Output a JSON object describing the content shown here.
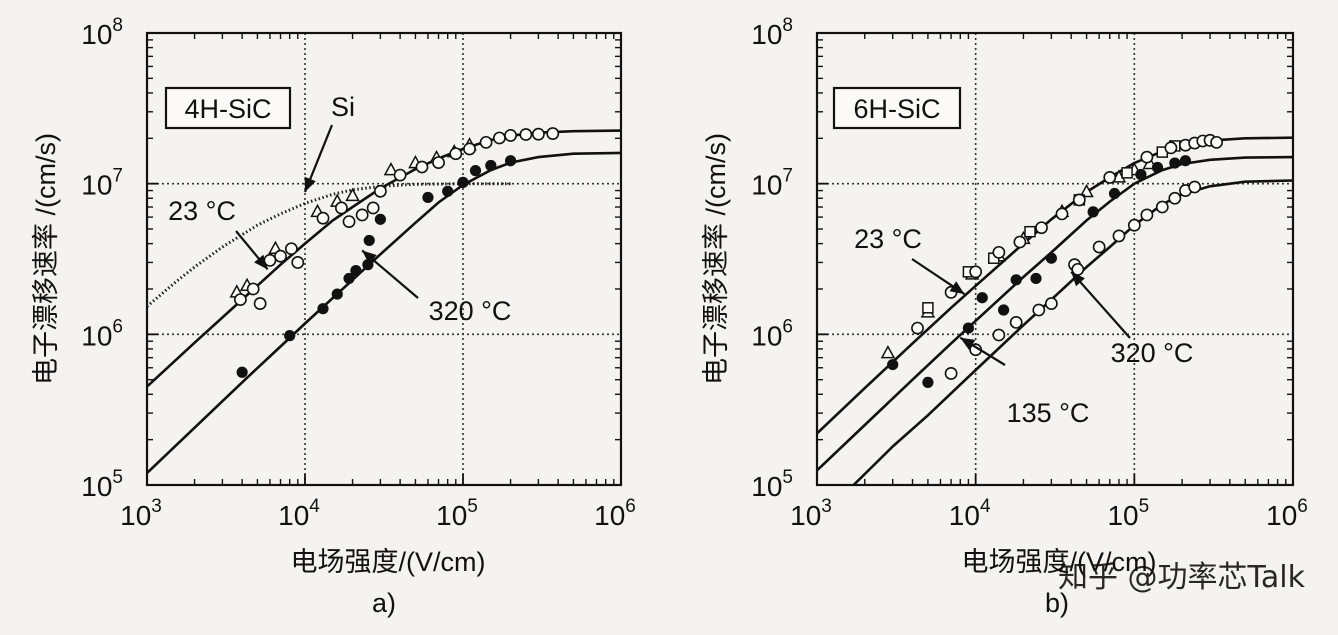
{
  "colors": {
    "ink": "#111111",
    "grid": "#333333",
    "background": "#f4f3ef",
    "watermark": "#ffffff"
  },
  "watermark": "知乎 @功率芯Talk",
  "chart_data": [
    {
      "type": "scatter",
      "panel_label": "a)",
      "box_label": "4H-SiC",
      "xlabel": "电场强度/(V/cm)",
      "ylabel": "电子漂移速率 /(cm/s)",
      "x_scale": "log",
      "y_scale": "log",
      "xlim": [
        1000,
        1000000
      ],
      "ylim": [
        100000,
        100000000
      ],
      "x_ticks": [
        {
          "base": "10",
          "exp": "3"
        },
        {
          "base": "10",
          "exp": "4"
        },
        {
          "base": "10",
          "exp": "5"
        },
        {
          "base": "10",
          "exp": "6"
        }
      ],
      "y_ticks": [
        {
          "base": "10",
          "exp": "5"
        },
        {
          "base": "10",
          "exp": "6"
        },
        {
          "base": "10",
          "exp": "7"
        },
        {
          "base": "10",
          "exp": "8"
        }
      ],
      "grid": "dotted",
      "annotations": [
        {
          "text": "Si",
          "to": [
            10000,
            8800000
          ]
        },
        {
          "text": "23 °C",
          "to": [
            5800,
            2700000
          ]
        },
        {
          "text": "320 °C",
          "to": [
            23000,
            3600000
          ]
        }
      ],
      "series": [
        {
          "name": "Si",
          "style": "dotted-curve",
          "points": [
            [
              1000,
              1530000
            ],
            [
              1500,
              2200000
            ],
            [
              2000,
              2800000
            ],
            [
              3000,
              3800000
            ],
            [
              5000,
              5300000
            ],
            [
              7000,
              6300000
            ],
            [
              10000,
              7400000
            ],
            [
              15000,
              8500000
            ],
            [
              20000,
              9100000
            ],
            [
              30000,
              9600000
            ],
            [
              50000,
              9900000
            ],
            [
              100000,
              10000000
            ],
            [
              200000,
              10000000
            ]
          ]
        },
        {
          "name": "23 °C",
          "style": "solid-curve",
          "points": [
            [
              1000,
              450000
            ],
            [
              2000,
              880000
            ],
            [
              4000,
              1700000
            ],
            [
              7000,
              2900000
            ],
            [
              10000,
              4000000
            ],
            [
              15000,
              5700000
            ],
            [
              20000,
              7000000
            ],
            [
              30000,
              9300000
            ],
            [
              50000,
              12500000
            ],
            [
              70000,
              14700000
            ],
            [
              100000,
              17000000
            ],
            [
              150000,
              19500000
            ],
            [
              200000,
              20800000
            ],
            [
              300000,
              21800000
            ],
            [
              500000,
              22300000
            ],
            [
              1000000,
              22500000
            ]
          ]
        },
        {
          "name": "320 °C",
          "style": "solid-curve",
          "points": [
            [
              1000,
              120000
            ],
            [
              2000,
              240000
            ],
            [
              4000,
              480000
            ],
            [
              7000,
              830000
            ],
            [
              10000,
              1180000
            ],
            [
              20000,
              2300000
            ],
            [
              30000,
              3400000
            ],
            [
              50000,
              5500000
            ],
            [
              70000,
              7500000
            ],
            [
              100000,
              9800000
            ],
            [
              150000,
              12300000
            ],
            [
              200000,
              13800000
            ],
            [
              300000,
              15000000
            ],
            [
              500000,
              15800000
            ],
            [
              1000000,
              16000000
            ]
          ]
        },
        {
          "name": "triangles",
          "marker": "triangle-open",
          "points": [
            [
              3700,
              1900000
            ],
            [
              4300,
              2100000
            ],
            [
              6500,
              3700000
            ],
            [
              12000,
              6500000
            ],
            [
              16000,
              7600000
            ],
            [
              20000,
              8300000
            ],
            [
              35000,
              12300000
            ],
            [
              50000,
              13700000
            ],
            [
              68000,
              14800000
            ],
            [
              88000,
              16200000
            ],
            [
              110000,
              18000000
            ]
          ]
        },
        {
          "name": "open circles",
          "marker": "circle-open",
          "points": [
            [
              3900,
              1700000
            ],
            [
              4700,
              2000000
            ],
            [
              5200,
              1600000
            ],
            [
              6000,
              3100000
            ],
            [
              7000,
              3300000
            ],
            [
              8200,
              3700000
            ],
            [
              9000,
              3000000
            ],
            [
              13000,
              5900000
            ],
            [
              17000,
              6900000
            ],
            [
              19000,
              5600000
            ],
            [
              23000,
              6200000
            ],
            [
              27000,
              6900000
            ],
            [
              30000,
              8900000
            ],
            [
              40000,
              11400000
            ],
            [
              55000,
              12900000
            ],
            [
              70000,
              13800000
            ],
            [
              90000,
              15800000
            ],
            [
              110000,
              17000000
            ],
            [
              140000,
              18800000
            ],
            [
              170000,
              20100000
            ],
            [
              200000,
              20900000
            ],
            [
              250000,
              21200000
            ],
            [
              300000,
              21300000
            ],
            [
              370000,
              21500000
            ]
          ]
        },
        {
          "name": "filled circles",
          "marker": "circle-filled",
          "points": [
            [
              4000,
              560000
            ],
            [
              8000,
              980000
            ],
            [
              13000,
              1480000
            ],
            [
              16000,
              1850000
            ],
            [
              19000,
              2350000
            ],
            [
              21000,
              2650000
            ],
            [
              25000,
              2900000
            ],
            [
              25500,
              4200000
            ],
            [
              30000,
              5800000
            ],
            [
              60000,
              8100000
            ],
            [
              80000,
              8900000
            ],
            [
              100000,
              10200000
            ],
            [
              120000,
              12200000
            ],
            [
              150000,
              13200000
            ],
            [
              200000,
              14200000
            ]
          ]
        }
      ]
    },
    {
      "type": "scatter",
      "panel_label": "b)",
      "box_label": "6H-SiC",
      "xlabel": "电场强度/(V/cm)",
      "ylabel": "电子漂移速率 /(cm/s)",
      "x_scale": "log",
      "y_scale": "log",
      "xlim": [
        1000,
        1000000
      ],
      "ylim": [
        100000,
        100000000
      ],
      "x_ticks": [
        {
          "base": "10",
          "exp": "3"
        },
        {
          "base": "10",
          "exp": "4"
        },
        {
          "base": "10",
          "exp": "5"
        },
        {
          "base": "10",
          "exp": "6"
        }
      ],
      "y_ticks": [
        {
          "base": "10",
          "exp": "5"
        },
        {
          "base": "10",
          "exp": "6"
        },
        {
          "base": "10",
          "exp": "7"
        },
        {
          "base": "10",
          "exp": "8"
        }
      ],
      "grid": "dotted",
      "annotations": [
        {
          "text": "23 °C",
          "to": [
            8500,
            1850000
          ]
        },
        {
          "text": "135 °C",
          "to": [
            8000,
            950000
          ]
        },
        {
          "text": "320 °C",
          "to": [
            40000,
            2600000
          ]
        }
      ],
      "series": [
        {
          "name": "23 °C",
          "style": "solid-curve",
          "points": [
            [
              1000,
              220000
            ],
            [
              2000,
              440000
            ],
            [
              4000,
              870000
            ],
            [
              7000,
              1500000
            ],
            [
              10000,
              2100000
            ],
            [
              20000,
              4000000
            ],
            [
              30000,
              5800000
            ],
            [
              50000,
              8800000
            ],
            [
              70000,
              11000000
            ],
            [
              100000,
              13700000
            ],
            [
              150000,
              16400000
            ],
            [
              200000,
              18000000
            ],
            [
              300000,
              19300000
            ],
            [
              500000,
              20000000
            ],
            [
              1000000,
              20200000
            ]
          ]
        },
        {
          "name": "135 °C",
          "style": "solid-curve",
          "points": [
            [
              1000,
              125000
            ],
            [
              2000,
              250000
            ],
            [
              4000,
              500000
            ],
            [
              7000,
              870000
            ],
            [
              10000,
              1230000
            ],
            [
              20000,
              2400000
            ],
            [
              30000,
              3500000
            ],
            [
              50000,
              5700000
            ],
            [
              70000,
              7600000
            ],
            [
              100000,
              10000000
            ],
            [
              150000,
              12300000
            ],
            [
              200000,
              13500000
            ],
            [
              300000,
              14400000
            ],
            [
              500000,
              14900000
            ],
            [
              1000000,
              15000000
            ]
          ]
        },
        {
          "name": "320 °C",
          "style": "solid-curve",
          "points": [
            [
              1700,
              100000
            ],
            [
              3000,
              180000
            ],
            [
              5000,
              290000
            ],
            [
              10000,
              580000
            ],
            [
              20000,
              1150000
            ],
            [
              30000,
              1700000
            ],
            [
              50000,
              2800000
            ],
            [
              70000,
              3800000
            ],
            [
              100000,
              5300000
            ],
            [
              150000,
              7300000
            ],
            [
              200000,
              8500000
            ],
            [
              300000,
              9600000
            ],
            [
              500000,
              10300000
            ],
            [
              1000000,
              10500000
            ]
          ]
        },
        {
          "name": "triangles",
          "marker": "triangle-open",
          "points": [
            [
              2800,
              750000
            ],
            [
              5000,
              1400000
            ],
            [
              9500,
              2500000
            ],
            [
              14000,
              3300000
            ],
            [
              20000,
              4300000
            ],
            [
              35000,
              6500000
            ],
            [
              50000,
              8800000
            ],
            [
              80000,
              11000000
            ],
            [
              100000,
              12300000
            ],
            [
              125000,
              13500000
            ]
          ]
        },
        {
          "name": "squares",
          "marker": "square-open",
          "points": [
            [
              5000,
              1500000
            ],
            [
              9000,
              2600000
            ],
            [
              13000,
              3200000
            ],
            [
              22000,
              4800000
            ],
            [
              45000,
              7800000
            ],
            [
              90000,
              11800000
            ],
            [
              150000,
              16200000
            ],
            [
              180000,
              17800000
            ]
          ]
        },
        {
          "name": "open circles",
          "marker": "circle-open",
          "points": [
            [
              4300,
              1100000
            ],
            [
              7000,
              1900000
            ],
            [
              10000,
              2600000
            ],
            [
              14000,
              3500000
            ],
            [
              19000,
              4100000
            ],
            [
              26000,
              5100000
            ],
            [
              35000,
              6300000
            ],
            [
              45000,
              7800000
            ],
            [
              70000,
              11000000
            ],
            [
              120000,
              15000000
            ],
            [
              170000,
              17300000
            ],
            [
              210000,
              18000000
            ],
            [
              240000,
              18600000
            ],
            [
              270000,
              19200000
            ],
            [
              300000,
              19400000
            ],
            [
              330000,
              18800000
            ]
          ]
        },
        {
          "name": "filled circles",
          "marker": "circle-filled",
          "points": [
            [
              3000,
              630000
            ],
            [
              5000,
              480000
            ],
            [
              9000,
              1100000
            ],
            [
              11000,
              1750000
            ],
            [
              15000,
              1450000
            ],
            [
              18000,
              2300000
            ],
            [
              24000,
              2350000
            ],
            [
              30000,
              3200000
            ],
            [
              55000,
              6500000
            ],
            [
              75000,
              8600000
            ],
            [
              110000,
              11500000
            ],
            [
              140000,
              12800000
            ],
            [
              180000,
              13700000
            ],
            [
              210000,
              14200000
            ]
          ]
        },
        {
          "name": "135 open circles",
          "marker": "circle-open",
          "points": [
            [
              7000,
              550000
            ],
            [
              10000,
              790000
            ],
            [
              14000,
              990000
            ],
            [
              18000,
              1200000
            ],
            [
              25000,
              1450000
            ],
            [
              30000,
              1600000
            ],
            [
              42000,
              2900000
            ],
            [
              44000,
              2700000
            ],
            [
              60000,
              3800000
            ],
            [
              80000,
              4500000
            ],
            [
              100000,
              5300000
            ],
            [
              120000,
              6200000
            ],
            [
              150000,
              7000000
            ],
            [
              180000,
              8000000
            ],
            [
              210000,
              9000000
            ],
            [
              240000,
              9500000
            ]
          ]
        }
      ]
    }
  ]
}
